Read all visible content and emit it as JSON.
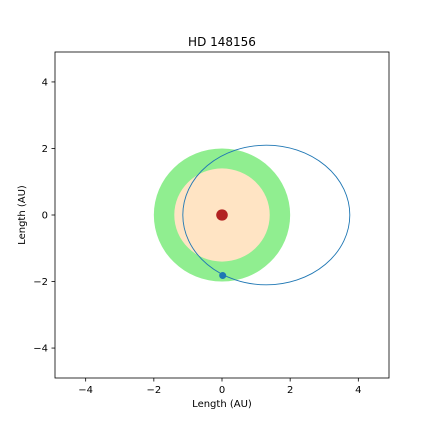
{
  "chart_data": {
    "type": "scatter",
    "title": "HD 148156",
    "xlabel": "Length (AU)",
    "ylabel": "Length (AU)",
    "xlim": [
      -4.9,
      4.9
    ],
    "ylim": [
      -4.9,
      4.9
    ],
    "x_ticks": [
      -4,
      -2,
      0,
      2,
      4
    ],
    "y_ticks": [
      -4,
      -2,
      0,
      2,
      4
    ],
    "x_tick_labels": [
      "−4",
      "−2",
      "0",
      "2",
      "4"
    ],
    "y_tick_labels": [
      "−4",
      "−2",
      "0",
      "2",
      "4"
    ],
    "grid": false,
    "habitable_zone": {
      "outer_radius": 2.0,
      "inner_radius": 1.4,
      "outer_color": "#90ee90",
      "inner_color": "#ffe4c4"
    },
    "star": {
      "x": 0,
      "y": 0,
      "radius": 0.17,
      "color": "#b22222"
    },
    "orbit": {
      "center_x": 1.3,
      "center_y": 0.0,
      "semi_major": 2.45,
      "semi_minor": 2.1,
      "color": "#1f77b4"
    },
    "planet": {
      "x": 0.02,
      "y": -1.82,
      "color": "#1f77b4"
    }
  }
}
